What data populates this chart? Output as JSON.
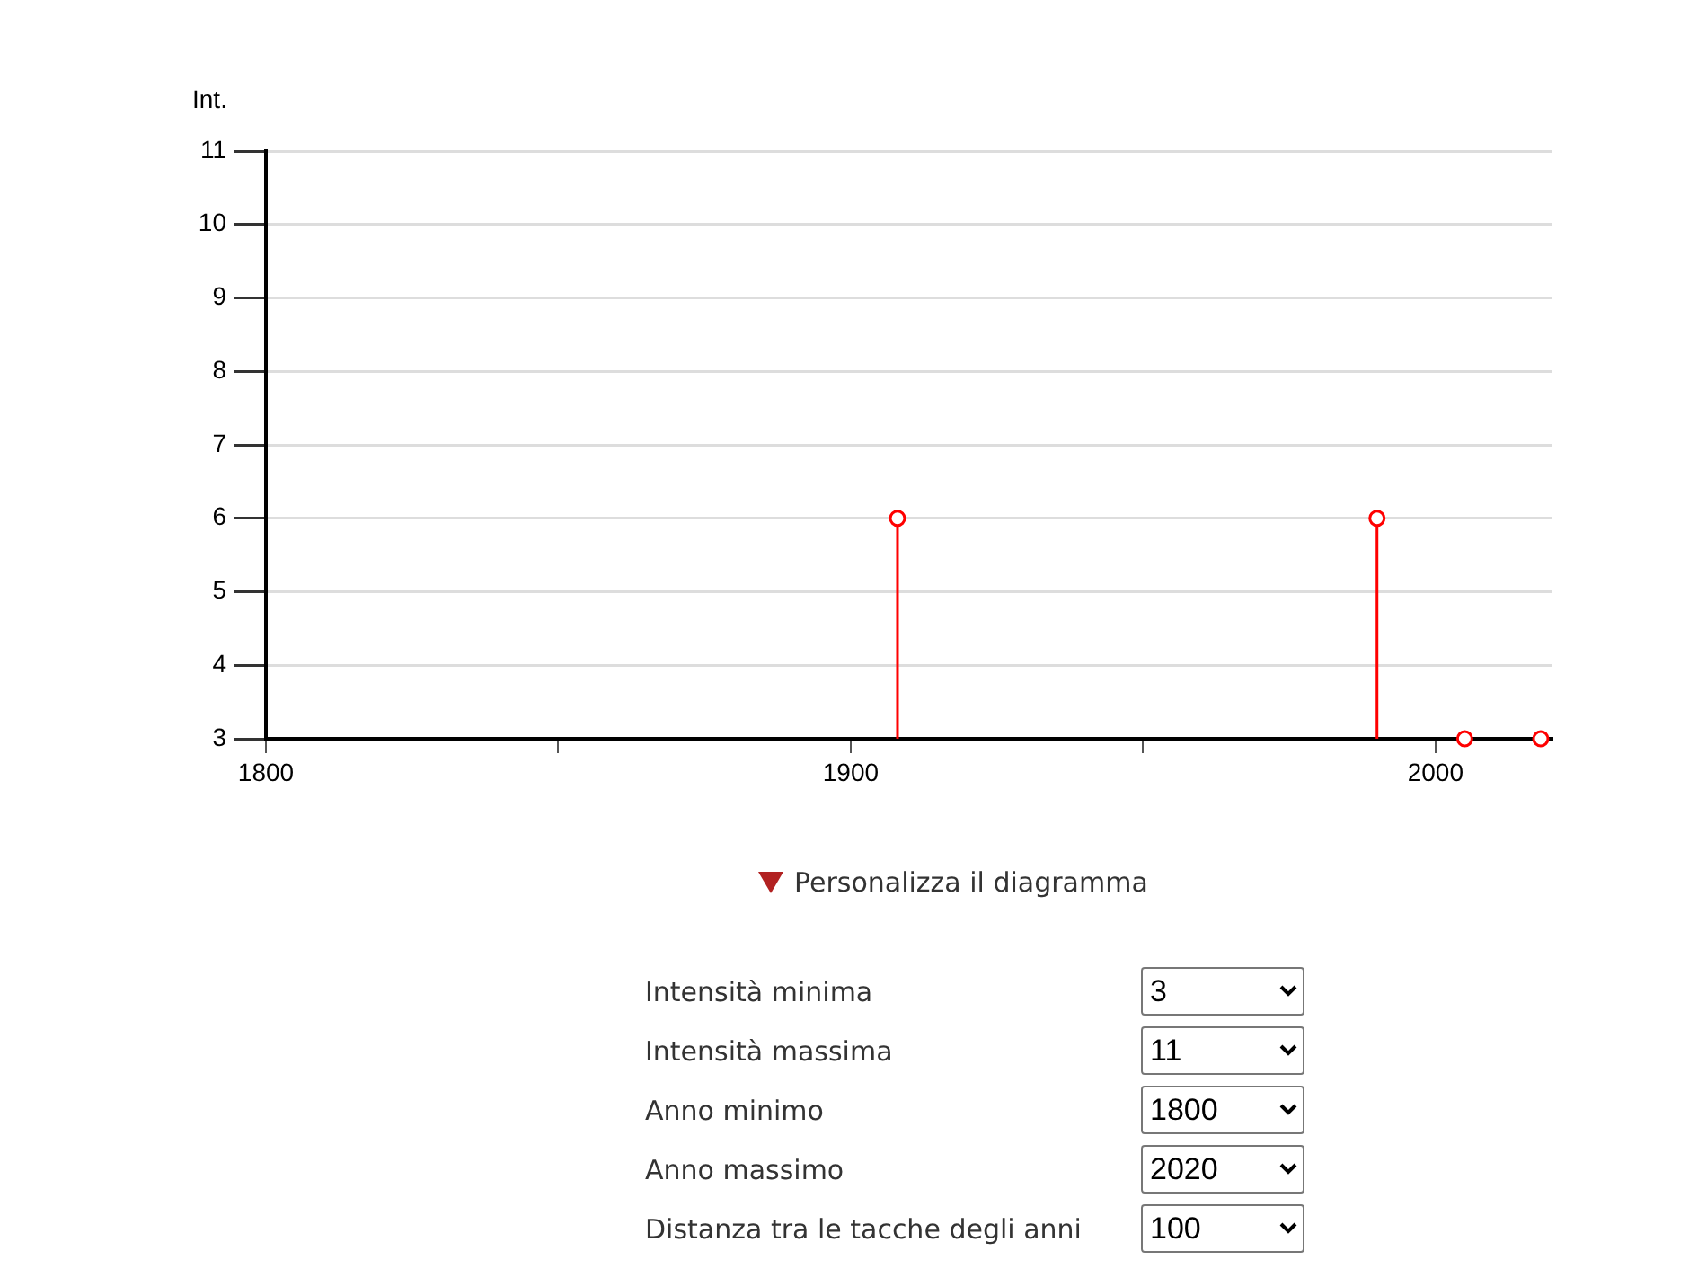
{
  "chart_data": {
    "type": "lollipop",
    "ylabel": "Int.",
    "x": [
      1908,
      1990,
      2005,
      2018
    ],
    "values": [
      6,
      6,
      3,
      3
    ],
    "color": "#ff0000",
    "xlim": [
      1800,
      2020
    ],
    "xticks": [
      1800,
      {
        "value": 1850,
        "label": null
      },
      1900,
      {
        "value": 1950,
        "label": null
      },
      2000
    ],
    "ylim": [
      3,
      11
    ],
    "yticks": [
      3,
      4,
      5,
      6,
      7,
      8,
      9,
      10,
      11
    ],
    "grid": "y",
    "marker": "circle",
    "legend": false,
    "annotations": [
      "Personalizza il diagramma",
      "Intensità minima",
      "3",
      "Intensità massima",
      "11",
      "Anno minimo",
      "1800",
      "Anno massimo",
      "2020",
      "Distanza tra le tacche degli anni",
      "100"
    ]
  }
}
